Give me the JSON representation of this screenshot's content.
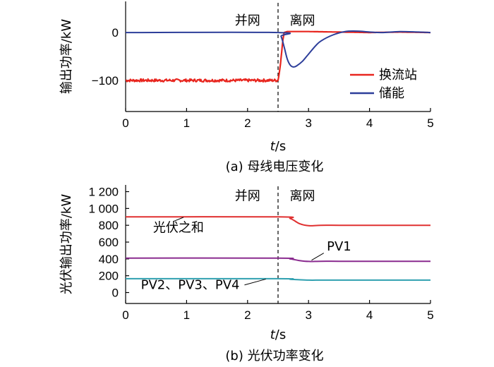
{
  "chart_data": [
    {
      "id": "a",
      "type": "line",
      "ylabel": "输出功率/kW",
      "xlabel_italic": "t",
      "xlabel_unit": "/s",
      "caption": "(a)  母线电压变化",
      "xlim": [
        0,
        5
      ],
      "ylim": [
        -165,
        65
      ],
      "xticks": [
        0,
        1,
        2,
        3,
        4,
        5
      ],
      "xtick_labels": [
        "0",
        "1",
        "2",
        "3",
        "4",
        "5"
      ],
      "yticks": [
        0,
        -100
      ],
      "ytick_labels": [
        "0",
        "−100"
      ],
      "vline_x": 2.5,
      "region_labels": [
        {
          "text": "并网",
          "x": 2.0,
          "y": 25
        },
        {
          "text": "离网",
          "x": 2.9,
          "y": 25
        }
      ],
      "series": [
        {
          "name": "换流站",
          "color": "#e8261f",
          "x": [
            0,
            2.5,
            2.52,
            2.54,
            2.56,
            2.58,
            2.6,
            2.65,
            3.0,
            3.5,
            4.0,
            4.5,
            5.0
          ],
          "y": [
            -100,
            -100,
            -85,
            -65,
            -40,
            -15,
            0,
            2,
            2,
            1,
            0,
            1,
            0
          ],
          "noise": 3
        },
        {
          "name": "储能",
          "color": "#2d3e9a",
          "x": [
            0,
            2.5,
            2.55,
            2.6,
            2.65,
            2.7,
            2.75,
            2.8,
            2.9,
            3.0,
            3.1,
            3.2,
            3.4,
            3.6,
            3.8,
            4.0,
            4.2,
            4.5,
            4.8,
            5.0
          ],
          "y": [
            0,
            0,
            -8,
            -30,
            -55,
            -68,
            -72,
            -70,
            -60,
            -45,
            -30,
            -18,
            -5,
            2,
            3,
            1,
            0,
            2,
            1,
            0
          ]
        }
      ],
      "legend": [
        {
          "name": "换流站",
          "color": "#e8261f"
        },
        {
          "name": "储能",
          "color": "#2d3e9a"
        }
      ]
    },
    {
      "id": "b",
      "type": "line",
      "ylabel": "光伏输出功率/kW",
      "xlabel_italic": "t",
      "xlabel_unit": "/s",
      "caption": "(b)  光伏功率变化",
      "xlim": [
        0,
        5
      ],
      "ylim": [
        -130,
        1280
      ],
      "xticks": [
        0,
        1,
        2,
        3,
        4,
        5
      ],
      "xtick_labels": [
        "0",
        "1",
        "2",
        "3",
        "4",
        "5"
      ],
      "yticks": [
        0,
        200,
        400,
        600,
        800,
        1000,
        1200
      ],
      "ytick_labels": [
        "0",
        "200",
        "400",
        "600",
        "800",
        "1 000",
        "1 200"
      ],
      "vline_x": 2.5,
      "region_labels": [
        {
          "text": "并网",
          "x": 2.0,
          "y": 1150
        },
        {
          "text": "离网",
          "x": 2.9,
          "y": 1150
        }
      ],
      "series": [
        {
          "name": "光伏之和",
          "color": "#e03030",
          "x": [
            0,
            2.5,
            2.7,
            2.85,
            3.0,
            3.2,
            3.5,
            4.0,
            5.0
          ],
          "y": [
            900,
            900,
            880,
            820,
            795,
            800,
            800,
            800,
            800
          ],
          "label": {
            "text": "光伏之和",
            "lx": 0.45,
            "ly": 720,
            "px": 0.78,
            "py": 845,
            "tx": 0.95,
            "ty": 895
          }
        },
        {
          "name": "PV1",
          "color": "#8a2b8f",
          "x": [
            0,
            2.5,
            2.7,
            2.85,
            3.0,
            3.2,
            3.5,
            4.0,
            5.0
          ],
          "y": [
            410,
            410,
            400,
            380,
            370,
            372,
            372,
            372,
            372
          ],
          "label": {
            "text": "PV1",
            "lx": 3.3,
            "ly": 500,
            "px": 3.25,
            "py": 470,
            "tx": 3.05,
            "ty": 385
          }
        },
        {
          "name": "PV2、PV3、PV4",
          "color": "#2fa0b0",
          "x": [
            0,
            2.5,
            2.7,
            2.85,
            3.0,
            3.2,
            3.5,
            4.0,
            5.0
          ],
          "y": [
            165,
            165,
            158,
            152,
            148,
            148,
            148,
            148,
            148
          ],
          "label": {
            "text": "PV2、PV3、PV4",
            "lx": 0.25,
            "ly": 40,
            "px": 1.95,
            "py": 90,
            "tx": 2.3,
            "ty": 160
          }
        }
      ]
    }
  ]
}
